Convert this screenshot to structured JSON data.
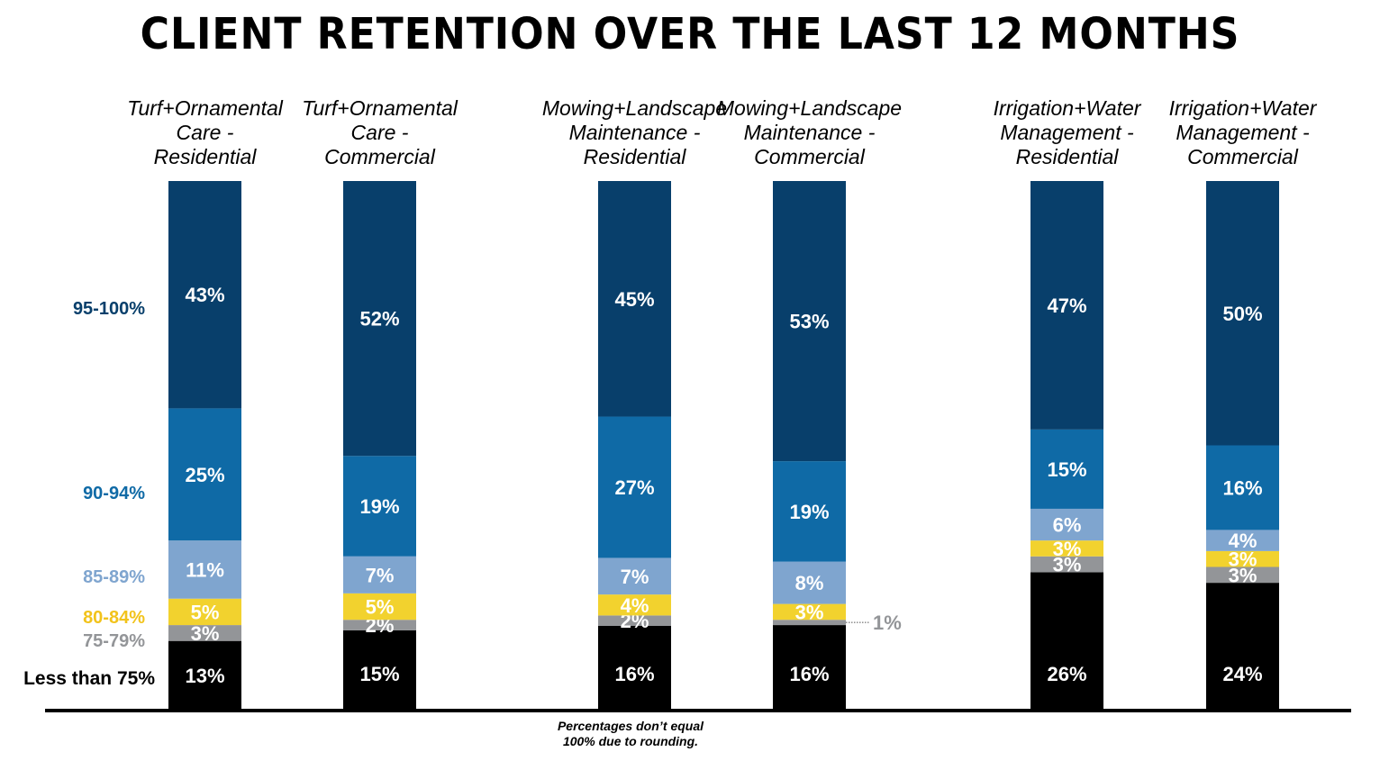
{
  "title": "CLIENT RETENTION OVER THE LAST 12 MONTHS",
  "note_line1": "Percentages don’t equal",
  "note_line2": "100% due to rounding.",
  "chart_data": {
    "type": "bar",
    "stacked": true,
    "title": "CLIENT RETENTION OVER THE LAST 12 MONTHS",
    "categories": [
      [
        "Turf+Ornamental",
        "Care -",
        "Residential"
      ],
      [
        "Turf+Ornamental",
        "Care -",
        "Commercial"
      ],
      [
        "Mowing+Landscape",
        "Maintenance -",
        "Residential"
      ],
      [
        "Mowing+Landscape",
        "Maintenance -",
        "Commercial"
      ],
      [
        "Irrigation+Water",
        "Management -",
        "Residential"
      ],
      [
        "Irrigation+Water",
        "Management -",
        "Commercial"
      ]
    ],
    "series": [
      {
        "name": "Less than 75%",
        "color": "#000000",
        "label_color": "#000000",
        "values": [
          13,
          15,
          16,
          16,
          26,
          24
        ]
      },
      {
        "name": "75-79%",
        "color": "#939598",
        "label_color": "#939598",
        "values": [
          3,
          2,
          2,
          1,
          3,
          3
        ]
      },
      {
        "name": "80-84%",
        "color": "#f2d22e",
        "label_color": "#f2c31b",
        "values": [
          5,
          5,
          4,
          3,
          3,
          3
        ]
      },
      {
        "name": "85-89%",
        "color": "#7fa5cf",
        "label_color": "#7fa5cf",
        "values": [
          11,
          7,
          7,
          8,
          6,
          4
        ]
      },
      {
        "name": "90-94%",
        "color": "#0f6aa6",
        "label_color": "#0f6aa6",
        "values": [
          25,
          19,
          27,
          19,
          15,
          16
        ]
      },
      {
        "name": "95-100%",
        "color": "#083f6b",
        "label_color": "#083f6b",
        "values": [
          43,
          52,
          45,
          53,
          47,
          50
        ]
      }
    ],
    "value_suffix": "%",
    "ylim": [
      0,
      100
    ],
    "grid": false,
    "legend": "left"
  }
}
